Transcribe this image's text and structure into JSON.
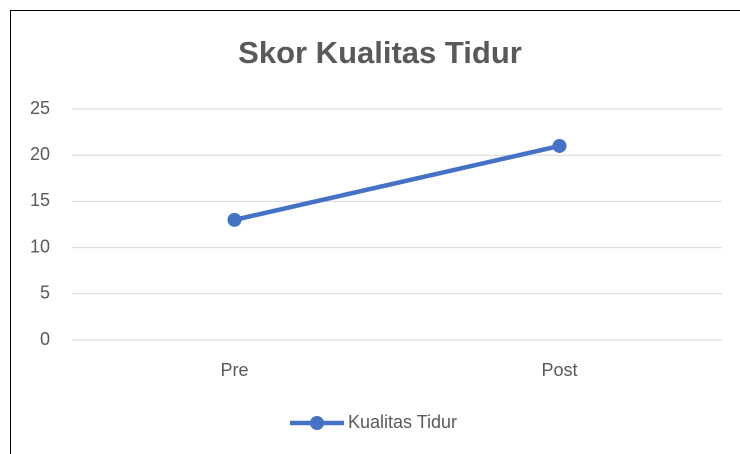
{
  "chart_data": {
    "type": "line",
    "title": "Skor Kualitas Tidur",
    "categories": [
      "Pre",
      "Post"
    ],
    "series": [
      {
        "name": "Kualitas Tidur",
        "color": "#4472c4",
        "values": [
          13,
          21
        ]
      }
    ],
    "ylim": [
      0,
      25
    ],
    "yticks": [
      0,
      5,
      10,
      15,
      20,
      25
    ],
    "grid": true,
    "legend": "bottom"
  }
}
